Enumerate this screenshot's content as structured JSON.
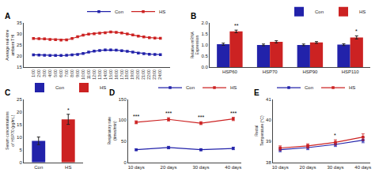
{
  "chart_data": [
    {
      "type": "line",
      "title": "A",
      "ylabel": "Average real-time ambient THI",
      "categories": [
        "1:00",
        "2:00",
        "3:00",
        "4:00",
        "5:00",
        "6:00",
        "7:00",
        "8:00",
        "9:00",
        "10:00",
        "11:00",
        "12:00",
        "13:00",
        "14:00",
        "15:00",
        "16:00",
        "17:00",
        "18:00",
        "19:00",
        "20:00",
        "21:00",
        "22:00",
        "23:00",
        "24:00"
      ],
      "series": [
        {
          "name": "Con",
          "color": "#2222aa",
          "values": [
            20.6,
            20.5,
            20.4,
            20.3,
            20.3,
            20.3,
            20.4,
            20.6,
            20.8,
            21.2,
            21.8,
            22.3,
            22.6,
            22.8,
            22.8,
            22.7,
            22.5,
            22.2,
            21.8,
            21.4,
            21.1,
            20.9,
            20.8,
            20.7
          ]
        },
        {
          "name": "HS",
          "color": "#cc2222",
          "values": [
            28.0,
            27.9,
            27.8,
            27.6,
            27.5,
            27.3,
            27.4,
            28.0,
            28.8,
            29.5,
            30.0,
            30.2,
            30.4,
            30.6,
            31.0,
            30.8,
            30.5,
            30.1,
            29.6,
            29.1,
            28.7,
            28.4,
            28.2,
            28.1
          ]
        }
      ],
      "ylim": [
        15,
        35
      ],
      "yticks": [
        15,
        20,
        25,
        30,
        35
      ],
      "grid": false,
      "legend": "upper right",
      "marker": "square"
    },
    {
      "type": "bar",
      "title": "B",
      "ylabel": "Relative mRNA Expression",
      "categories": [
        "HSP60",
        "HSP70",
        "HSP90",
        "HSP110"
      ],
      "series": [
        {
          "name": "Con",
          "color": "#2222aa",
          "values": [
            1.04,
            1.01,
            1.01,
            1.02
          ],
          "errors": [
            0.05,
            0.04,
            0.04,
            0.04
          ]
        },
        {
          "name": "HS",
          "color": "#cc2222",
          "values": [
            1.62,
            1.15,
            1.12,
            1.35
          ],
          "errors": [
            0.06,
            0.05,
            0.04,
            0.07
          ]
        }
      ],
      "annotations": [
        {
          "category": "HSP60",
          "series": "HS",
          "text": "**"
        },
        {
          "category": "HSP110",
          "series": "HS",
          "text": "*"
        }
      ],
      "ylim": [
        0.0,
        2.0
      ],
      "yticks": [
        {
          "value": 0.0,
          "label": "0.0"
        },
        0.5,
        {
          "value": 1.0,
          "label": "1.0"
        },
        1.5,
        {
          "value": 2.0,
          "label": "2.0"
        }
      ],
      "grid": false,
      "legend": "upper right"
    },
    {
      "type": "bar",
      "title": "C",
      "ylabel": "Serum concentrations of HSP70 (pg/mL)",
      "categories": [
        "Con",
        "HS"
      ],
      "series": [
        {
          "name": "Con",
          "color": "#2222aa",
          "values": [
            8.5,
            null
          ],
          "errors": [
            1.5,
            null
          ]
        },
        {
          "name": "HS",
          "color": "#cc2222",
          "values": [
            null,
            17.0
          ],
          "errors": [
            null,
            2.0
          ]
        }
      ],
      "annotations": [
        {
          "category": "HS",
          "series": "HS",
          "text": "*"
        }
      ],
      "ylim": [
        0,
        25
      ],
      "yticks": [
        0,
        5,
        10,
        15,
        20,
        25
      ],
      "grid": false,
      "legend": "upper left"
    },
    {
      "type": "line",
      "title": "D",
      "ylabel": "Respiratory rate (times/min)",
      "categories": [
        "10 days",
        "20 days",
        "30 days",
        "40 days"
      ],
      "series": [
        {
          "name": "Con",
          "color": "#2222aa",
          "values": [
            30.0,
            35.0,
            30.0,
            33.0
          ],
          "errors": [
            2.0,
            3.0,
            2.5,
            3.0
          ]
        },
        {
          "name": "HS",
          "color": "#cc2222",
          "values": [
            95.0,
            102.0,
            93.0,
            103.0
          ],
          "errors": [
            3.5,
            4.0,
            3.5,
            4.0
          ]
        }
      ],
      "annotations": [
        {
          "category": "10 days",
          "series": "HS",
          "text": "***"
        },
        {
          "category": "20 days",
          "series": "HS",
          "text": "***"
        },
        {
          "category": "30 days",
          "series": "HS",
          "text": "***"
        },
        {
          "category": "40 days",
          "series": "HS",
          "text": "***"
        }
      ],
      "ylim": [
        0,
        150
      ],
      "yticks": [
        0,
        50,
        100,
        150
      ],
      "grid": false,
      "legend": "upper right",
      "marker": "square"
    },
    {
      "type": "line",
      "title": "E",
      "ylabel": "Rectal Temperature (°C)",
      "categories": [
        "10 days",
        "20 days",
        "30 days",
        "40 days"
      ],
      "series": [
        {
          "name": "Con",
          "color": "#2222aa",
          "values": [
            38.6,
            38.7,
            38.85,
            39.05
          ],
          "errors": [
            0.1,
            0.1,
            0.1,
            0.12
          ]
        },
        {
          "name": "HS",
          "color": "#cc2222",
          "values": [
            38.68,
            38.78,
            38.95,
            39.2
          ],
          "errors": [
            0.1,
            0.1,
            0.12,
            0.15
          ]
        }
      ],
      "annotations": [
        {
          "category": "30 days",
          "series": "HS",
          "text": "*"
        }
      ],
      "ylim": [
        38,
        41
      ],
      "yticks": [
        38,
        39,
        40,
        41
      ],
      "grid": false,
      "legend": "upper left",
      "marker": "square"
    }
  ]
}
